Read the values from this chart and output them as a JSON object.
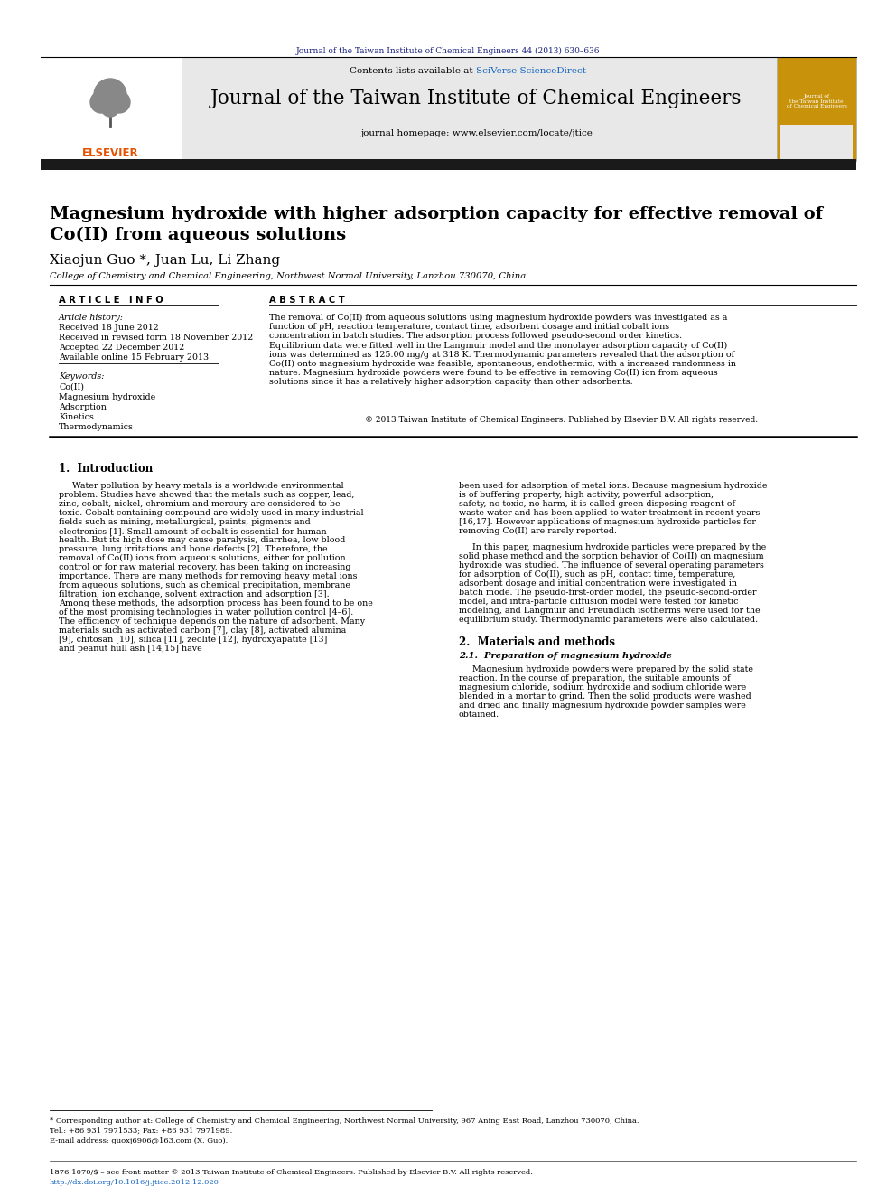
{
  "page_bg": "#ffffff",
  "top_journal_ref": "Journal of the Taiwan Institute of Chemical Engineers 44 (2013) 630–636",
  "top_journal_ref_color": "#1a237e",
  "header_bg": "#e8e8e8",
  "header_contents": "Contents lists available at",
  "header_sciverse": "SciVerse ScienceDirect",
  "header_sciverse_color": "#1565c0",
  "journal_name": "Journal of the Taiwan Institute of Chemical Engineers",
  "journal_homepage": "journal homepage: www.elsevier.com/locate/jtice",
  "black_bar_color": "#1a1a1a",
  "article_title_line1": "Magnesium hydroxide with higher adsorption capacity for effective removal of",
  "article_title_line2": "Co(II) from aqueous solutions",
  "authors": "Xiaojun Guo *, Juan Lu, Li Zhang",
  "affiliation": "College of Chemistry and Chemical Engineering, Northwest Normal University, Lanzhou 730070, China",
  "article_info_header": "A R T I C L E   I N F O",
  "abstract_header": "A B S T R A C T",
  "article_history_label": "Article history:",
  "received1": "Received 18 June 2012",
  "received2": "Received in revised form 18 November 2012",
  "accepted": "Accepted 22 December 2012",
  "available": "Available online 15 February 2013",
  "keywords_label": "Keywords:",
  "keyword1": "Co(II)",
  "keyword2": "Magnesium hydroxide",
  "keyword3": "Adsorption",
  "keyword4": "Kinetics",
  "keyword5": "Thermodynamics",
  "abstract_text": "The removal of Co(II) from aqueous solutions using magnesium hydroxide powders was investigated as a function of pH, reaction temperature, contact time, adsorbent dosage and initial cobalt ions concentration in batch studies. The adsorption process followed pseudo-second order kinetics. Equilibrium data were fitted well in the Langmuir model and the monolayer adsorption capacity of Co(II) ions was determined as 125.00 mg/g at 318 K. Thermodynamic parameters revealed that the adsorption of Co(II) onto magnesium hydroxide was feasible, spontaneous, endothermic, with a increased randomness in nature. Magnesium hydroxide powders were found to be effective in removing Co(II) ion from aqueous solutions since it has a relatively higher adsorption capacity than other adsorbents.",
  "copyright": "© 2013 Taiwan Institute of Chemical Engineers. Published by Elsevier B.V. All rights reserved.",
  "section1_title": "1.  Introduction",
  "intro_col1_text": "Water pollution by heavy metals is a worldwide environmental problem. Studies have showed that the metals such as copper, lead, zinc, cobalt, nickel, chromium and mercury are considered to be toxic. Cobalt containing compound are widely used in many industrial fields such as mining, metallurgical, paints, pigments and electronics [1]. Small amount of cobalt is essential for human health. But its high dose may cause paralysis, diarrhea, low blood pressure, lung irritations and bone defects [2]. Therefore, the removal of Co(II) ions from aqueous solutions, either for pollution control or for raw material recovery, has been taking on increasing importance. There are many methods for removing heavy metal ions from aqueous solutions, such as chemical precipitation, membrane filtration, ion exchange, solvent extraction and adsorption [3]. Among these methods, the adsorption process has been found to be one of the most promising technologies in water pollution control [4–6]. The efficiency of technique depends on the nature of adsorbent. Many materials such as activated carbon [7], clay [8], activated alumina [9], chitosan [10], silica [11], zeolite [12], hydroxyapatite [13] and peanut hull ash [14,15] have",
  "intro_col2_text": "been used for adsorption of metal ions. Because magnesium hydroxide is of buffering property, high activity, powerful adsorption, safety, no toxic, no harm, it is called green disposing reagent of waste water and has been applied to water treatment in recent years [16,17]. However applications of magnesium hydroxide particles for removing Co(II) are rarely reported.\n    In this paper, magnesium hydroxide particles were prepared by the solid phase method and the sorption behavior of Co(II) on magnesium hydroxide was studied. The influence of several operating parameters for adsorption of Co(II), such as pH, contact time, temperature, adsorbent dosage and initial concentration were investigated in batch mode. The pseudo-first-order model, the pseudo-second-order model, and intra-particle diffusion model were tested for kinetic modeling, and Langmuir and Freundlich isotherms were used for the equilibrium study. Thermodynamic parameters were also calculated.",
  "section2_title": "2.  Materials and methods",
  "section21_title": "2.1.  Preparation of magnesium hydroxide",
  "section21_text": "Magnesium hydroxide powders were prepared by the solid state reaction. In the course of preparation, the suitable amounts of magnesium chloride, sodium hydroxide and sodium chloride were blended in a mortar to grind. Then the solid products were washed and dried and finally magnesium hydroxide powder samples were obtained.",
  "footer_note_line1": "* Corresponding author at: College of Chemistry and Chemical Engineering, Northwest Normal University, 967 Aning East Road, Lanzhou 730070, China.",
  "footer_note_line2": "Tel.: +86 931 7971533; Fax: +86 931 7971989.",
  "footer_note_line3": "E-mail address: guoxj6906@163.com (X. Guo).",
  "footer_issn": "1876-1070/$ – see front matter © 2013 Taiwan Institute of Chemical Engineers. Published by Elsevier B.V. All rights reserved.",
  "footer_doi": "http://dx.doi.org/10.1016/j.jtice.2012.12.020",
  "footer_doi_color": "#1565c0",
  "elsevier_color": "#e65100",
  "link_color": "#1565c0"
}
